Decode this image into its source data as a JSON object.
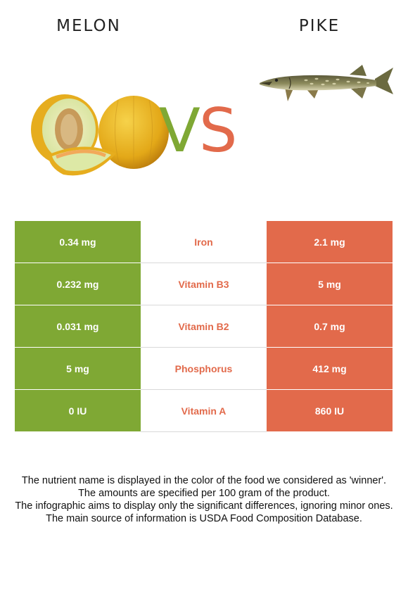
{
  "left_food": {
    "name": "MELON",
    "color": "#7fa834"
  },
  "right_food": {
    "name": "PIKE",
    "color": "#e26a4b"
  },
  "vs": {
    "v": "V",
    "s": "S"
  },
  "rows": [
    {
      "nutrient": "Iron",
      "left": "0.34 mg",
      "right": "2.1 mg",
      "winner": "right"
    },
    {
      "nutrient": "Vitamin B3",
      "left": "0.232 mg",
      "right": "5 mg",
      "winner": "right"
    },
    {
      "nutrient": "Vitamin B2",
      "left": "0.031 mg",
      "right": "0.7 mg",
      "winner": "right"
    },
    {
      "nutrient": "Phosphorus",
      "left": "5 mg",
      "right": "412 mg",
      "winner": "right"
    },
    {
      "nutrient": "Vitamin A",
      "left": "0 IU",
      "right": "860 IU",
      "winner": "right"
    }
  ],
  "notes": [
    "The nutrient name is displayed in the color of the food we considered as 'winner'.",
    "The amounts are specified per 100 gram of the product.",
    "The infographic aims to display only the significant differences, ignoring minor ones.",
    "The main source of information is USDA Food Composition Database."
  ]
}
